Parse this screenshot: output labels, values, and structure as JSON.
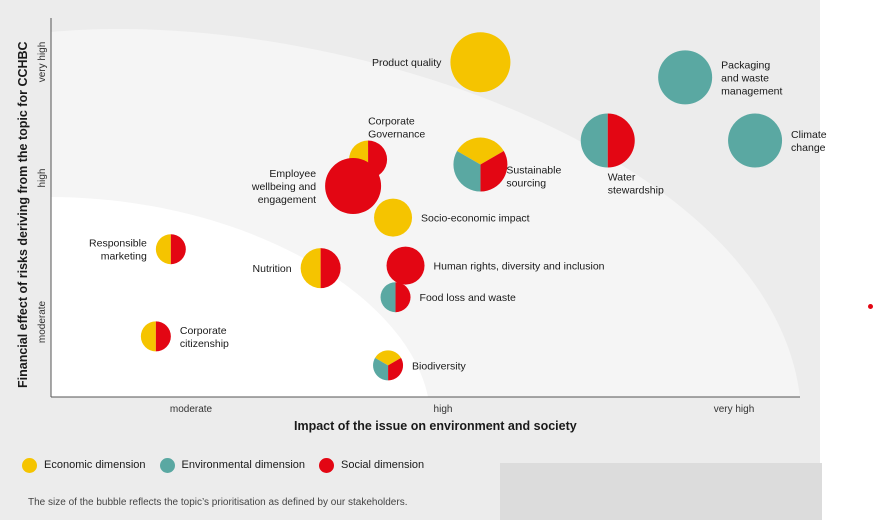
{
  "colors": {
    "economic": "#f5c400",
    "environmental": "#5aa8a2",
    "social": "#e30613",
    "outer_zone": "#f5f5f5",
    "inner_zone": "#ffffff"
  },
  "chart_data": {
    "type": "bubble",
    "xlabel": "Impact of the issue on environment and society",
    "ylabel": "Financial effect of risks deriving from the topic for CCHBC",
    "xticks": [
      "moderate",
      "high",
      "very high"
    ],
    "yticks": [
      "moderate",
      "high",
      "very high"
    ],
    "xlim": [
      0,
      3
    ],
    "ylim": [
      0,
      3
    ],
    "bubbles": [
      {
        "label": "Product quality",
        "x": 1.72,
        "y": 2.65,
        "r": 30,
        "segments": [
          "economic"
        ],
        "label_side": "left"
      },
      {
        "label": "Packaging and waste management",
        "x": 2.54,
        "y": 2.53,
        "r": 27,
        "segments": [
          "environmental"
        ],
        "label_side": "right"
      },
      {
        "label": "Climate change",
        "x": 2.82,
        "y": 2.03,
        "r": 27,
        "segments": [
          "environmental"
        ],
        "label_side": "right"
      },
      {
        "label": "Water stewardship",
        "x": 2.23,
        "y": 2.03,
        "r": 27,
        "segments": [
          "environmental",
          "social"
        ],
        "label_side": "below"
      },
      {
        "label": "Sustainable sourcing",
        "x": 1.72,
        "y": 1.84,
        "r": 27,
        "segments": [
          "economic",
          "social",
          "environmental"
        ],
        "label_side": "right-low"
      },
      {
        "label": "Corporate Governance",
        "x": 1.27,
        "y": 1.88,
        "r": 19,
        "segments": [
          "economic",
          "social"
        ],
        "label_side": "above"
      },
      {
        "label": "Employee wellbeing and engagement",
        "x": 1.21,
        "y": 1.67,
        "r": 28,
        "segments": [
          "social"
        ],
        "label_side": "left"
      },
      {
        "label": "Socio-economic impact",
        "x": 1.37,
        "y": 1.42,
        "r": 19,
        "segments": [
          "economic"
        ],
        "label_side": "right"
      },
      {
        "label": "Responsible marketing",
        "x": 0.48,
        "y": 1.17,
        "r": 15,
        "segments": [
          "economic",
          "social"
        ],
        "label_side": "left"
      },
      {
        "label": "Nutrition",
        "x": 1.08,
        "y": 1.02,
        "r": 20,
        "segments": [
          "economic",
          "social"
        ],
        "label_side": "left"
      },
      {
        "label": "Human rights, diversity and inclusion",
        "x": 1.42,
        "y": 1.04,
        "r": 19,
        "segments": [
          "social"
        ],
        "label_side": "right"
      },
      {
        "label": "Food loss and waste",
        "x": 1.38,
        "y": 0.79,
        "r": 15,
        "segments": [
          "environmental",
          "social"
        ],
        "label_side": "right"
      },
      {
        "label": "Corporate citizenship",
        "x": 0.42,
        "y": 0.48,
        "r": 15,
        "segments": [
          "economic",
          "social"
        ],
        "label_side": "right"
      },
      {
        "label": "Biodiversity",
        "x": 1.35,
        "y": 0.25,
        "r": 15,
        "segments": [
          "economic",
          "social",
          "environmental"
        ],
        "label_side": "right"
      }
    ]
  },
  "legend": {
    "economic": "Economic dimension",
    "environmental": "Environmental dimension",
    "social": "Social dimension"
  },
  "footnote": "The size of the bubble reflects the topic’s prioritisation as defined by our stakeholders."
}
